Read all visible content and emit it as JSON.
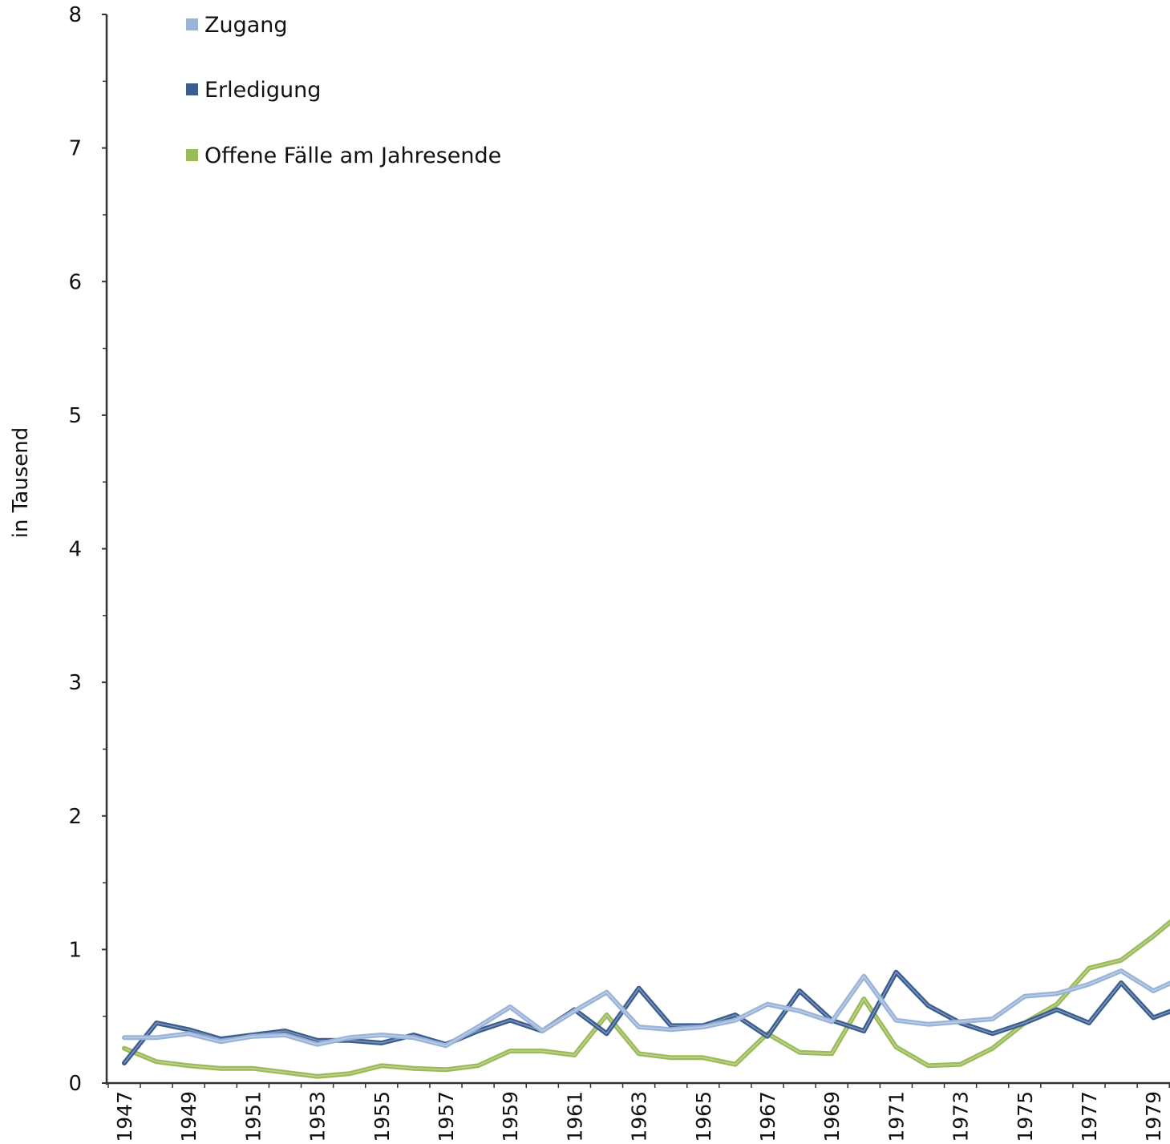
{
  "colors": {
    "axis": "#333333",
    "zugang": "#9ab3d8",
    "erledigung": "#3a5d8f",
    "offene": "#9bbb59"
  },
  "chart_data": {
    "type": "line",
    "ylabel": "in Tausend",
    "xlabel": "",
    "ylim": [
      0,
      8
    ],
    "yticks": [
      0,
      1,
      2,
      3,
      4,
      5,
      6,
      7,
      8
    ],
    "grid": false,
    "legend_position": "top-left",
    "x": [
      1947,
      1948,
      1949,
      1950,
      1951,
      1952,
      1953,
      1954,
      1955,
      1956,
      1957,
      1958,
      1959,
      1960,
      1961,
      1962,
      1963,
      1964,
      1965,
      1966,
      1967,
      1968,
      1969,
      1970,
      1971,
      1972,
      1973,
      1974,
      1975,
      1976,
      1977,
      1978,
      1979,
      1980
    ],
    "xtick_labels": [
      "1947",
      "1949",
      "1951",
      "1953",
      "1955",
      "1957",
      "1959",
      "1961",
      "1963",
      "1965",
      "1967",
      "1969",
      "1971",
      "1973",
      "1975",
      "1977",
      "1979"
    ],
    "series": [
      {
        "name": "Zugang",
        "color": "#9ab3d8",
        "values": [
          0.34,
          0.34,
          0.37,
          0.31,
          0.35,
          0.36,
          0.29,
          0.34,
          0.36,
          0.34,
          0.28,
          0.42,
          0.57,
          0.39,
          0.54,
          0.68,
          0.42,
          0.4,
          0.42,
          0.47,
          0.59,
          0.54,
          0.46,
          0.8,
          0.47,
          0.44,
          0.46,
          0.48,
          0.65,
          0.67,
          0.74,
          0.84,
          0.69,
          0.8
        ]
      },
      {
        "name": "Erledigung",
        "color": "#3a5d8f",
        "values": [
          0.15,
          0.45,
          0.4,
          0.33,
          0.36,
          0.39,
          0.32,
          0.32,
          0.3,
          0.36,
          0.29,
          0.39,
          0.47,
          0.39,
          0.55,
          0.37,
          0.71,
          0.43,
          0.43,
          0.51,
          0.35,
          0.69,
          0.47,
          0.39,
          0.83,
          0.58,
          0.45,
          0.37,
          0.45,
          0.55,
          0.45,
          0.75,
          0.49,
          0.58
        ]
      },
      {
        "name": "Offene Fälle am Jahresende",
        "color": "#9bbb59",
        "values": [
          0.26,
          0.16,
          0.13,
          0.11,
          0.11,
          0.08,
          0.05,
          0.07,
          0.13,
          0.11,
          0.1,
          0.13,
          0.24,
          0.24,
          0.21,
          0.51,
          0.22,
          0.19,
          0.19,
          0.14,
          0.37,
          0.23,
          0.22,
          0.63,
          0.27,
          0.13,
          0.14,
          0.26,
          0.45,
          0.59,
          0.86,
          0.92,
          1.1,
          1.3
        ]
      }
    ]
  }
}
